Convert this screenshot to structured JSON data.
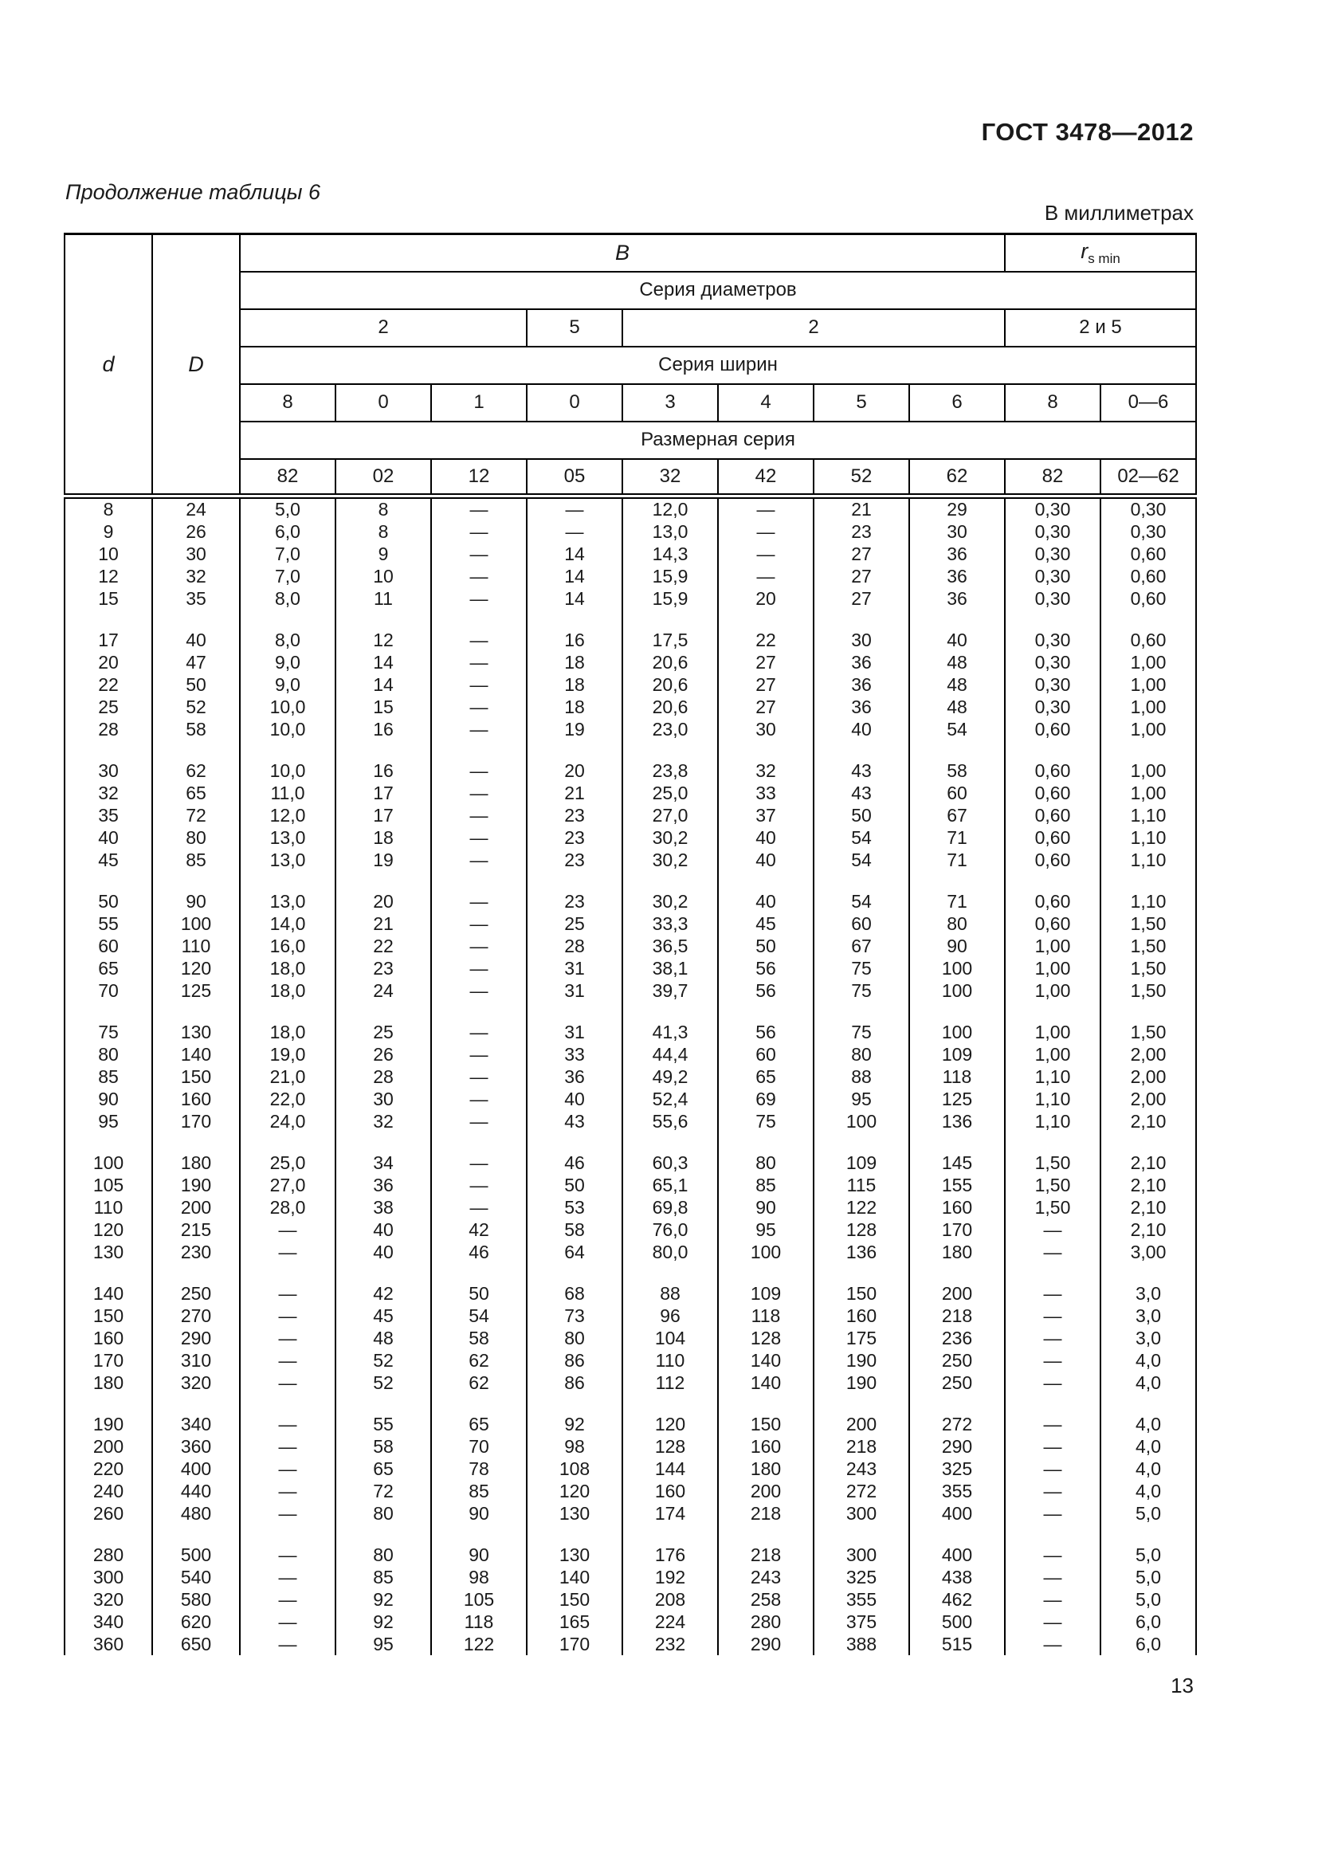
{
  "page": {
    "doc_number": "ГОСТ 3478—2012",
    "table_caption": "Продолжение таблицы 6",
    "units_note": "В миллиметрах",
    "page_number": "13"
  },
  "table": {
    "col_d": "d",
    "col_D": "D",
    "col_B": "B",
    "col_rs": "r",
    "col_rs_sub": "s min",
    "series_diameters_label": "Серия диаметров",
    "series_widths_label": "Серия ширин",
    "size_series_label": "Размерная серия",
    "diameter_series": [
      "2",
      "5",
      "2",
      "2 и 5"
    ],
    "width_series": [
      "8",
      "0",
      "1",
      "0",
      "3",
      "4",
      "5",
      "6",
      "8",
      "0—6"
    ],
    "size_series": [
      "82",
      "02",
      "12",
      "05",
      "32",
      "42",
      "52",
      "62",
      "82",
      "02—62"
    ],
    "groups": [
      [
        [
          "8",
          "24",
          "5,0",
          "8",
          "—",
          "—",
          "12,0",
          "—",
          "21",
          "29",
          "0,30",
          "0,30"
        ],
        [
          "9",
          "26",
          "6,0",
          "8",
          "—",
          "—",
          "13,0",
          "—",
          "23",
          "30",
          "0,30",
          "0,30"
        ],
        [
          "10",
          "30",
          "7,0",
          "9",
          "—",
          "14",
          "14,3",
          "—",
          "27",
          "36",
          "0,30",
          "0,60"
        ],
        [
          "12",
          "32",
          "7,0",
          "10",
          "—",
          "14",
          "15,9",
          "—",
          "27",
          "36",
          "0,30",
          "0,60"
        ],
        [
          "15",
          "35",
          "8,0",
          "11",
          "—",
          "14",
          "15,9",
          "20",
          "27",
          "36",
          "0,30",
          "0,60"
        ]
      ],
      [
        [
          "17",
          "40",
          "8,0",
          "12",
          "—",
          "16",
          "17,5",
          "22",
          "30",
          "40",
          "0,30",
          "0,60"
        ],
        [
          "20",
          "47",
          "9,0",
          "14",
          "—",
          "18",
          "20,6",
          "27",
          "36",
          "48",
          "0,30",
          "1,00"
        ],
        [
          "22",
          "50",
          "9,0",
          "14",
          "—",
          "18",
          "20,6",
          "27",
          "36",
          "48",
          "0,30",
          "1,00"
        ],
        [
          "25",
          "52",
          "10,0",
          "15",
          "—",
          "18",
          "20,6",
          "27",
          "36",
          "48",
          "0,30",
          "1,00"
        ],
        [
          "28",
          "58",
          "10,0",
          "16",
          "—",
          "19",
          "23,0",
          "30",
          "40",
          "54",
          "0,60",
          "1,00"
        ]
      ],
      [
        [
          "30",
          "62",
          "10,0",
          "16",
          "—",
          "20",
          "23,8",
          "32",
          "43",
          "58",
          "0,60",
          "1,00"
        ],
        [
          "32",
          "65",
          "11,0",
          "17",
          "—",
          "21",
          "25,0",
          "33",
          "43",
          "60",
          "0,60",
          "1,00"
        ],
        [
          "35",
          "72",
          "12,0",
          "17",
          "—",
          "23",
          "27,0",
          "37",
          "50",
          "67",
          "0,60",
          "1,10"
        ],
        [
          "40",
          "80",
          "13,0",
          "18",
          "—",
          "23",
          "30,2",
          "40",
          "54",
          "71",
          "0,60",
          "1,10"
        ],
        [
          "45",
          "85",
          "13,0",
          "19",
          "—",
          "23",
          "30,2",
          "40",
          "54",
          "71",
          "0,60",
          "1,10"
        ]
      ],
      [
        [
          "50",
          "90",
          "13,0",
          "20",
          "—",
          "23",
          "30,2",
          "40",
          "54",
          "71",
          "0,60",
          "1,10"
        ],
        [
          "55",
          "100",
          "14,0",
          "21",
          "—",
          "25",
          "33,3",
          "45",
          "60",
          "80",
          "0,60",
          "1,50"
        ],
        [
          "60",
          "110",
          "16,0",
          "22",
          "—",
          "28",
          "36,5",
          "50",
          "67",
          "90",
          "1,00",
          "1,50"
        ],
        [
          "65",
          "120",
          "18,0",
          "23",
          "—",
          "31",
          "38,1",
          "56",
          "75",
          "100",
          "1,00",
          "1,50"
        ],
        [
          "70",
          "125",
          "18,0",
          "24",
          "—",
          "31",
          "39,7",
          "56",
          "75",
          "100",
          "1,00",
          "1,50"
        ]
      ],
      [
        [
          "75",
          "130",
          "18,0",
          "25",
          "—",
          "31",
          "41,3",
          "56",
          "75",
          "100",
          "1,00",
          "1,50"
        ],
        [
          "80",
          "140",
          "19,0",
          "26",
          "—",
          "33",
          "44,4",
          "60",
          "80",
          "109",
          "1,00",
          "2,00"
        ],
        [
          "85",
          "150",
          "21,0",
          "28",
          "—",
          "36",
          "49,2",
          "65",
          "88",
          "118",
          "1,10",
          "2,00"
        ],
        [
          "90",
          "160",
          "22,0",
          "30",
          "—",
          "40",
          "52,4",
          "69",
          "95",
          "125",
          "1,10",
          "2,00"
        ],
        [
          "95",
          "170",
          "24,0",
          "32",
          "—",
          "43",
          "55,6",
          "75",
          "100",
          "136",
          "1,10",
          "2,10"
        ]
      ],
      [
        [
          "100",
          "180",
          "25,0",
          "34",
          "—",
          "46",
          "60,3",
          "80",
          "109",
          "145",
          "1,50",
          "2,10"
        ],
        [
          "105",
          "190",
          "27,0",
          "36",
          "—",
          "50",
          "65,1",
          "85",
          "115",
          "155",
          "1,50",
          "2,10"
        ],
        [
          "110",
          "200",
          "28,0",
          "38",
          "—",
          "53",
          "69,8",
          "90",
          "122",
          "160",
          "1,50",
          "2,10"
        ],
        [
          "120",
          "215",
          "—",
          "40",
          "42",
          "58",
          "76,0",
          "95",
          "128",
          "170",
          "—",
          "2,10"
        ],
        [
          "130",
          "230",
          "—",
          "40",
          "46",
          "64",
          "80,0",
          "100",
          "136",
          "180",
          "—",
          "3,00"
        ]
      ],
      [
        [
          "140",
          "250",
          "—",
          "42",
          "50",
          "68",
          "88",
          "109",
          "150",
          "200",
          "—",
          "3,0"
        ],
        [
          "150",
          "270",
          "—",
          "45",
          "54",
          "73",
          "96",
          "118",
          "160",
          "218",
          "—",
          "3,0"
        ],
        [
          "160",
          "290",
          "—",
          "48",
          "58",
          "80",
          "104",
          "128",
          "175",
          "236",
          "—",
          "3,0"
        ],
        [
          "170",
          "310",
          "—",
          "52",
          "62",
          "86",
          "110",
          "140",
          "190",
          "250",
          "—",
          "4,0"
        ],
        [
          "180",
          "320",
          "—",
          "52",
          "62",
          "86",
          "112",
          "140",
          "190",
          "250",
          "—",
          "4,0"
        ]
      ],
      [
        [
          "190",
          "340",
          "—",
          "55",
          "65",
          "92",
          "120",
          "150",
          "200",
          "272",
          "—",
          "4,0"
        ],
        [
          "200",
          "360",
          "—",
          "58",
          "70",
          "98",
          "128",
          "160",
          "218",
          "290",
          "—",
          "4,0"
        ],
        [
          "220",
          "400",
          "—",
          "65",
          "78",
          "108",
          "144",
          "180",
          "243",
          "325",
          "—",
          "4,0"
        ],
        [
          "240",
          "440",
          "—",
          "72",
          "85",
          "120",
          "160",
          "200",
          "272",
          "355",
          "—",
          "4,0"
        ],
        [
          "260",
          "480",
          "—",
          "80",
          "90",
          "130",
          "174",
          "218",
          "300",
          "400",
          "—",
          "5,0"
        ]
      ],
      [
        [
          "280",
          "500",
          "—",
          "80",
          "90",
          "130",
          "176",
          "218",
          "300",
          "400",
          "—",
          "5,0"
        ],
        [
          "300",
          "540",
          "—",
          "85",
          "98",
          "140",
          "192",
          "243",
          "325",
          "438",
          "—",
          "5,0"
        ],
        [
          "320",
          "580",
          "—",
          "92",
          "105",
          "150",
          "208",
          "258",
          "355",
          "462",
          "—",
          "5,0"
        ],
        [
          "340",
          "620",
          "—",
          "92",
          "118",
          "165",
          "224",
          "280",
          "375",
          "500",
          "—",
          "6,0"
        ],
        [
          "360",
          "650",
          "—",
          "95",
          "122",
          "170",
          "232",
          "290",
          "388",
          "515",
          "—",
          "6,0"
        ]
      ]
    ]
  }
}
